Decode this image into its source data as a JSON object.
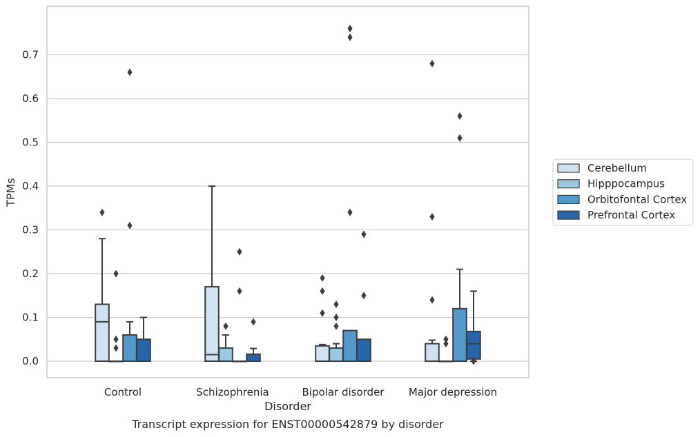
{
  "caption": "Transcript expression for ENST00000542879 by disorder",
  "chart_data": {
    "type": "box",
    "xlabel": "Disorder",
    "ylabel": "TPMs",
    "ylim": [
      -0.037,
      0.795
    ],
    "yticks": [
      "0.0",
      "0.1",
      "0.2",
      "0.3",
      "0.4",
      "0.5",
      "0.6",
      "0.7"
    ],
    "grid": true,
    "legend_position": "right",
    "categories": [
      "Control",
      "Schizophrenia",
      "Bipolar disorder",
      "Major depression"
    ],
    "series": [
      {
        "name": "Cerebellum",
        "color": "#d0e1f2",
        "boxes": [
          {
            "whislo": 0.0,
            "q1": 0.0,
            "med": 0.09,
            "q3": 0.13,
            "whishi": 0.28,
            "fliers": [
              0.34
            ]
          },
          {
            "whislo": 0.0,
            "q1": 0.0,
            "med": 0.015,
            "q3": 0.17,
            "whishi": 0.4,
            "fliers": []
          },
          {
            "whislo": 0.0,
            "q1": 0.0,
            "med": 0.0,
            "q3": 0.035,
            "whishi": 0.038,
            "fliers": [
              0.11,
              0.16,
              0.19
            ]
          },
          {
            "whislo": 0.0,
            "q1": 0.0,
            "med": 0.0,
            "q3": 0.04,
            "whishi": 0.048,
            "fliers": [
              0.14,
              0.33,
              0.68
            ]
          }
        ]
      },
      {
        "name": "Hipppocampus",
        "color": "#9ac8e0",
        "boxes": [
          {
            "whislo": 0.0,
            "q1": 0.0,
            "med": 0.0,
            "q3": 0.0,
            "whishi": 0.0,
            "fliers": [
              0.03,
              0.05,
              0.2
            ]
          },
          {
            "whislo": 0.0,
            "q1": 0.0,
            "med": 0.0,
            "q3": 0.03,
            "whishi": 0.06,
            "fliers": [
              0.08
            ]
          },
          {
            "whislo": 0.0,
            "q1": 0.0,
            "med": 0.0,
            "q3": 0.03,
            "whishi": 0.04,
            "fliers": [
              0.08,
              0.1,
              0.13
            ]
          },
          {
            "whislo": 0.0,
            "q1": 0.0,
            "med": 0.0,
            "q3": 0.0,
            "whishi": 0.0,
            "fliers": [
              0.04,
              0.05
            ]
          }
        ]
      },
      {
        "name": "Orbitofontal Cortex",
        "color": "#5299cc",
        "boxes": [
          {
            "whislo": 0.0,
            "q1": 0.0,
            "med": 0.0,
            "q3": 0.06,
            "whishi": 0.09,
            "fliers": [
              0.31,
              0.66
            ]
          },
          {
            "whislo": 0.0,
            "q1": 0.0,
            "med": 0.0,
            "q3": 0.0,
            "whishi": 0.0,
            "fliers": [
              0.16,
              0.25
            ]
          },
          {
            "whislo": 0.0,
            "q1": 0.0,
            "med": 0.0,
            "q3": 0.07,
            "whishi": 0.07,
            "fliers": [
              0.34,
              0.74,
              0.76
            ]
          },
          {
            "whislo": 0.0,
            "q1": 0.0,
            "med": 0.0,
            "q3": 0.12,
            "whishi": 0.21,
            "fliers": [
              0.51,
              0.56
            ]
          }
        ]
      },
      {
        "name": "Prefrontal Cortex",
        "color": "#2765a8",
        "boxes": [
          {
            "whislo": 0.0,
            "q1": 0.0,
            "med": 0.0,
            "q3": 0.05,
            "whishi": 0.1,
            "fliers": []
          },
          {
            "whislo": 0.0,
            "q1": 0.0,
            "med": 0.0,
            "q3": 0.016,
            "whishi": 0.029,
            "fliers": [
              0.09
            ]
          },
          {
            "whislo": 0.0,
            "q1": 0.0,
            "med": 0.0,
            "q3": 0.05,
            "whishi": 0.05,
            "fliers": [
              0.15,
              0.29
            ]
          },
          {
            "whislo": 0.0,
            "q1": 0.005,
            "med": 0.04,
            "q3": 0.068,
            "whishi": 0.16,
            "fliers": [
              0.0
            ]
          }
        ]
      }
    ]
  }
}
